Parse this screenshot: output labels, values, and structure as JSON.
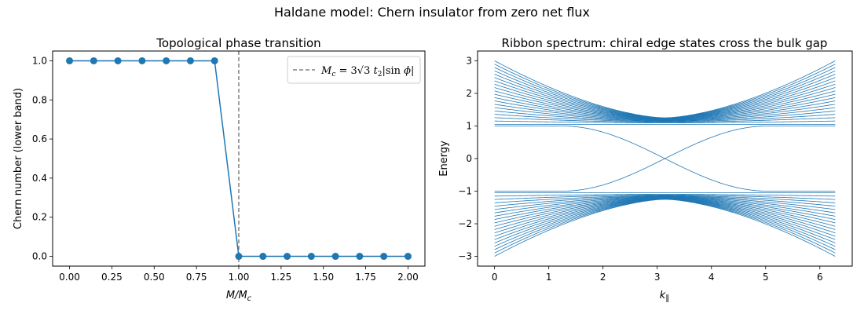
{
  "figure": {
    "suptitle": "Haldane model: Chern insulator from zero net flux"
  },
  "chart_data": [
    {
      "type": "line",
      "title": "Topological phase transition",
      "xlabel": "M/M",
      "xlabel_sub": "c",
      "ylabel": "Chern number (lower band)",
      "xlim": [
        -0.1,
        2.1
      ],
      "ylim": [
        -0.05,
        1.05
      ],
      "xticks": [
        0.0,
        0.25,
        0.5,
        0.75,
        1.0,
        1.25,
        1.5,
        1.75,
        2.0
      ],
      "xtick_labels": [
        "0.00",
        "0.25",
        "0.50",
        "0.75",
        "1.00",
        "1.25",
        "1.50",
        "1.75",
        "2.00"
      ],
      "yticks": [
        0.0,
        0.2,
        0.4,
        0.6,
        0.8,
        1.0
      ],
      "ytick_labels": [
        "0.0",
        "0.2",
        "0.4",
        "0.6",
        "0.8",
        "1.0"
      ],
      "series": [
        {
          "color": "#1f77b4",
          "marker": "circle",
          "x": [
            0.0,
            0.142857,
            0.285714,
            0.428571,
            0.571429,
            0.714286,
            0.857143,
            1.0,
            1.142857,
            1.285714,
            1.428571,
            1.571429,
            1.714286,
            1.857143,
            2.0
          ],
          "y": [
            1,
            1,
            1,
            1,
            1,
            1,
            1,
            0,
            0,
            0,
            0,
            0,
            0,
            0,
            0
          ]
        }
      ],
      "vline": {
        "x": 1.0,
        "color": "#808080",
        "style": "dashed"
      },
      "legend": {
        "placement": "top-right",
        "entries": [
          {
            "label": "M_c = 3√3 t_2|sin φ|",
            "color": "#808080",
            "style": "dashed"
          }
        ]
      },
      "grid": false
    },
    {
      "type": "line",
      "title": "Ribbon spectrum: chiral edge states cross the bulk gap",
      "xlabel": "k",
      "xlabel_sub": "∥",
      "ylabel": "Energy",
      "xlim": [
        -0.314,
        6.597
      ],
      "ylim": [
        -3.3,
        3.3
      ],
      "xticks": [
        0,
        1,
        2,
        3,
        4,
        5,
        6
      ],
      "xtick_labels": [
        "0",
        "1",
        "2",
        "3",
        "4",
        "5",
        "6"
      ],
      "yticks": [
        -3,
        -2,
        -1,
        0,
        1,
        2,
        3
      ],
      "yticks_labels": [
        "−3",
        "−2",
        "−1",
        "0",
        "1",
        "2",
        "3"
      ],
      "series_color": "#1f77b4",
      "bulk_band_count": 20,
      "bulk_gap_edge": 1.0,
      "band_edge_at_k0": 3.0,
      "edge_state_crossing": {
        "k": 3.14159,
        "energy": 0
      },
      "grid": false
    }
  ]
}
